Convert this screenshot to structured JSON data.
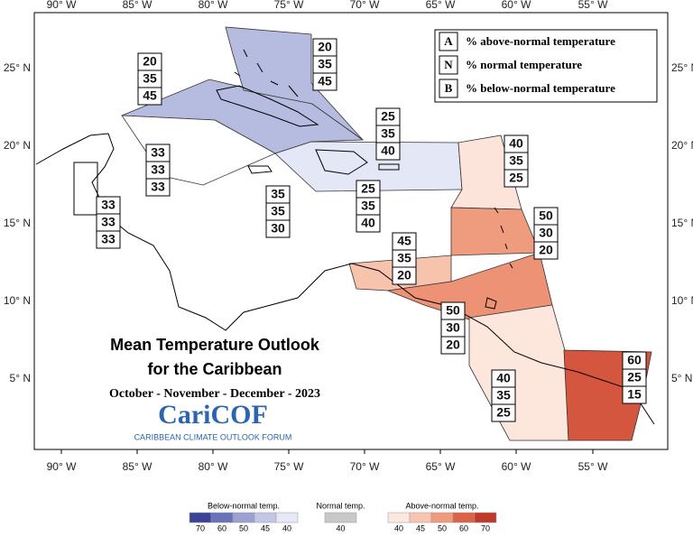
{
  "axes": {
    "lon_labels": [
      "90° W",
      "85° W",
      "80° W",
      "75° W",
      "70° W",
      "65° W",
      "60° W",
      "55° W"
    ],
    "lat_labels": [
      "25° N",
      "20° N",
      "15° N",
      "10° N",
      "5° N"
    ]
  },
  "key": {
    "rows": [
      {
        "letter": "A",
        "text": "% above-normal temperature"
      },
      {
        "letter": "N",
        "text": "% normal temperature"
      },
      {
        "letter": "B",
        "text": "% below-normal temperature"
      }
    ]
  },
  "title": {
    "line1": "Mean Temperature Outlook",
    "line2": "for the Caribbean",
    "period": "October - November - December - 2023"
  },
  "logo": {
    "name": "CariCOF",
    "tagline": "CARIBBEAN CLIMATE OUTLOOK FORUM"
  },
  "regions": [
    {
      "above": 20,
      "normal": 35,
      "below": 45
    },
    {
      "above": 20,
      "normal": 35,
      "below": 45
    },
    {
      "above": 25,
      "normal": 35,
      "below": 40
    },
    {
      "above": 33,
      "normal": 33,
      "below": 33
    },
    {
      "above": 33,
      "normal": 33,
      "below": 33
    },
    {
      "above": 35,
      "normal": 35,
      "below": 30
    },
    {
      "above": 25,
      "normal": 35,
      "below": 40
    },
    {
      "above": 40,
      "normal": 35,
      "below": 25
    },
    {
      "above": 50,
      "normal": 30,
      "below": 20
    },
    {
      "above": 45,
      "normal": 35,
      "below": 20
    },
    {
      "above": 50,
      "normal": 30,
      "below": 20
    },
    {
      "above": 40,
      "normal": 35,
      "below": 25
    },
    {
      "above": 60,
      "normal": 25,
      "below": 15
    }
  ],
  "color_legend": {
    "below": {
      "label": "Below-normal temp.",
      "ticks": [
        70,
        60,
        50,
        45,
        40
      ]
    },
    "normal": {
      "label": "Normal temp.",
      "ticks": [
        40
      ]
    },
    "above": {
      "label": "Above-normal temp.",
      "ticks": [
        40,
        45,
        50,
        60,
        70
      ]
    }
  }
}
